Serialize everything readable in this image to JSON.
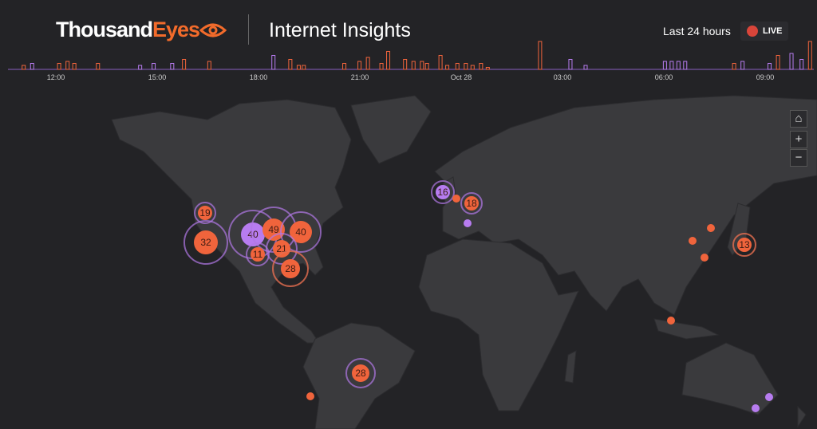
{
  "header": {
    "brand_main": "Thousand",
    "brand_accent": "Eyes",
    "title": "Internet Insights",
    "time_range": "Last 24 hours",
    "live_label": "LIVE"
  },
  "colors": {
    "outage": "#f0643c",
    "app_outage": "#b77cf0",
    "live": "#d9453a",
    "land": "#3a3a3d",
    "ocean": "#232326"
  },
  "timeline": {
    "ticks": [
      "12:00",
      "15:00",
      "18:00",
      "21:00",
      "Oct 28",
      "03:00",
      "06:00",
      "09:00"
    ],
    "events": [
      {
        "time": 11.0,
        "count": 2,
        "type": "outage"
      },
      {
        "time": 11.25,
        "count": 3,
        "type": "app"
      },
      {
        "time": 12.05,
        "count": 3,
        "type": "outage"
      },
      {
        "time": 12.3,
        "count": 4,
        "type": "outage"
      },
      {
        "time": 12.5,
        "count": 3,
        "type": "outage"
      },
      {
        "time": 13.2,
        "count": 3,
        "type": "outage"
      },
      {
        "time": 14.45,
        "count": 2,
        "type": "app"
      },
      {
        "time": 14.85,
        "count": 3,
        "type": "app"
      },
      {
        "time": 15.4,
        "count": 3,
        "type": "app"
      },
      {
        "time": 15.75,
        "count": 5,
        "type": "outage"
      },
      {
        "time": 16.5,
        "count": 4,
        "type": "outage"
      },
      {
        "time": 18.4,
        "count": 7,
        "type": "app"
      },
      {
        "time": 18.9,
        "count": 5,
        "type": "outage"
      },
      {
        "time": 19.15,
        "count": 2,
        "type": "outage"
      },
      {
        "time": 19.3,
        "count": 2,
        "type": "outage"
      },
      {
        "time": 20.5,
        "count": 3,
        "type": "outage"
      },
      {
        "time": 20.95,
        "count": 4,
        "type": "outage"
      },
      {
        "time": 21.2,
        "count": 6,
        "type": "outage"
      },
      {
        "time": 21.6,
        "count": 3,
        "type": "outage"
      },
      {
        "time": 21.8,
        "count": 9,
        "type": "outage"
      },
      {
        "time": 22.3,
        "count": 5,
        "type": "outage"
      },
      {
        "time": 22.55,
        "count": 4,
        "type": "outage"
      },
      {
        "time": 22.8,
        "count": 4,
        "type": "outage"
      },
      {
        "time": 22.95,
        "count": 3,
        "type": "outage"
      },
      {
        "time": 23.35,
        "count": 7,
        "type": "outage"
      },
      {
        "time": 23.55,
        "count": 2,
        "type": "outage"
      },
      {
        "time": 23.85,
        "count": 3,
        "type": "outage"
      },
      {
        "time": 24.1,
        "count": 3,
        "type": "outage"
      },
      {
        "time": 24.3,
        "count": 2,
        "type": "outage"
      },
      {
        "time": 24.55,
        "count": 3,
        "type": "outage"
      },
      {
        "time": 24.75,
        "count": 1,
        "type": "outage"
      },
      {
        "time": 26.3,
        "count": 14,
        "type": "outage"
      },
      {
        "time": 27.2,
        "count": 5,
        "type": "app"
      },
      {
        "time": 27.65,
        "count": 2,
        "type": "app"
      },
      {
        "time": 30.0,
        "count": 4,
        "type": "app"
      },
      {
        "time": 30.2,
        "count": 4,
        "type": "app"
      },
      {
        "time": 30.4,
        "count": 4,
        "type": "app"
      },
      {
        "time": 30.6,
        "count": 4,
        "type": "app"
      },
      {
        "time": 32.05,
        "count": 3,
        "type": "outage"
      },
      {
        "time": 32.3,
        "count": 4,
        "type": "app"
      },
      {
        "time": 33.1,
        "count": 3,
        "type": "app"
      },
      {
        "time": 33.35,
        "count": 7,
        "type": "outage"
      },
      {
        "time": 33.75,
        "count": 8,
        "type": "app"
      },
      {
        "time": 34.05,
        "count": 5,
        "type": "app"
      },
      {
        "time": 34.3,
        "count": 14,
        "type": "outage"
      }
    ]
  },
  "map_controls": {
    "home": "⌂",
    "zoom_in": "+",
    "zoom_out": "−"
  },
  "clusters": [
    {
      "count": "19",
      "type": "outage"
    },
    {
      "count": "32",
      "type": "outage"
    },
    {
      "count": "40",
      "type": "app"
    },
    {
      "count": "49",
      "type": "outage"
    },
    {
      "count": "40",
      "type": "outage"
    },
    {
      "count": "11",
      "type": "outage"
    },
    {
      "count": "21",
      "type": "outage"
    },
    {
      "count": "28",
      "type": "outage"
    },
    {
      "count": "16",
      "type": "app"
    },
    {
      "count": "18",
      "type": "outage"
    },
    {
      "count": "13",
      "type": "outage"
    },
    {
      "count": "28",
      "type": "outage"
    }
  ]
}
